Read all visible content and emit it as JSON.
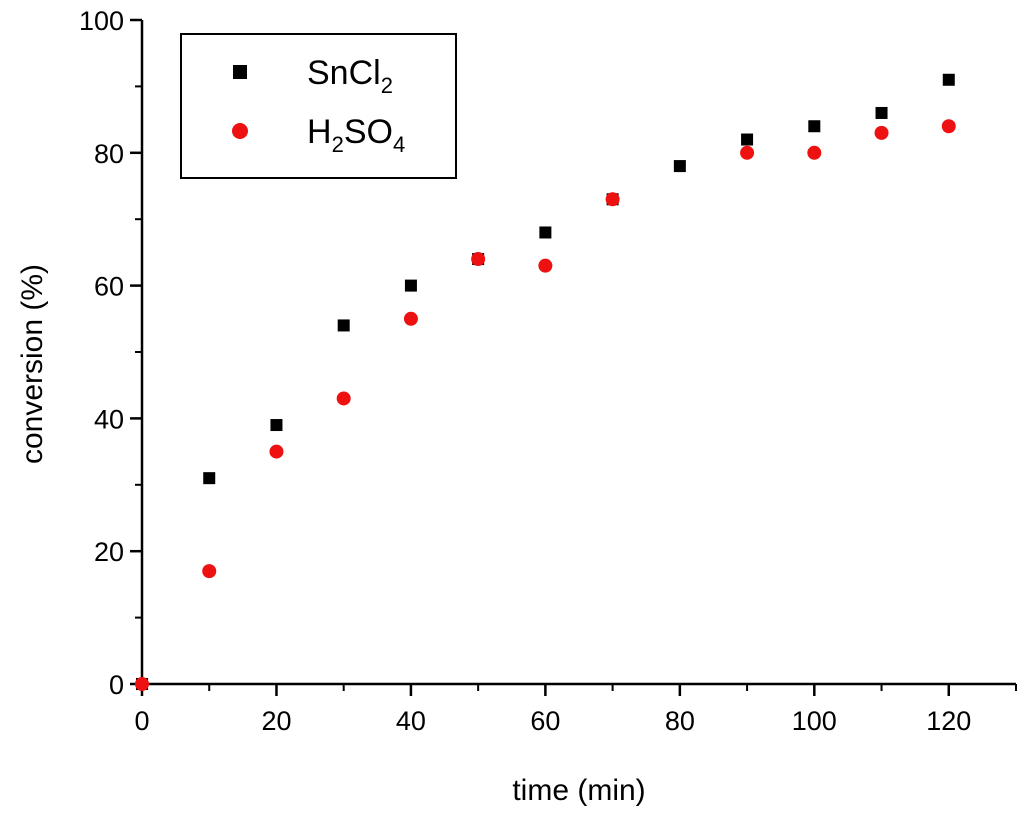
{
  "chart_data": {
    "type": "scatter",
    "title": "",
    "xlabel": "time (min)",
    "ylabel": "conversion (%)",
    "xlim": [
      0,
      130
    ],
    "ylim": [
      0,
      100
    ],
    "xticks": [
      0,
      20,
      40,
      60,
      80,
      100,
      120
    ],
    "yticks": [
      0,
      20,
      40,
      60,
      80,
      100
    ],
    "xtick_labels": [
      "0",
      "20",
      "40",
      "60",
      "80",
      "100",
      "120"
    ],
    "ytick_labels": [
      "0",
      "20",
      "40",
      "60",
      "80",
      "100"
    ],
    "legend_position": "top-left",
    "series": [
      {
        "name": "SnCl2",
        "label_main": "SnCl",
        "label_sub": "2",
        "marker": "square",
        "color": "#000000",
        "x": [
          0,
          10,
          20,
          30,
          40,
          50,
          60,
          70,
          80,
          90,
          100,
          110,
          120
        ],
        "y": [
          0,
          31,
          39,
          54,
          60,
          64,
          68,
          73,
          78,
          82,
          84,
          86,
          91
        ]
      },
      {
        "name": "H2SO4",
        "label_parts": [
          "H",
          "2",
          "SO",
          "4"
        ],
        "marker": "circle",
        "color": "#ee1111",
        "x": [
          0,
          10,
          20,
          30,
          40,
          50,
          60,
          70,
          90,
          100,
          110,
          120
        ],
        "y": [
          0,
          17,
          35,
          43,
          55,
          64,
          63,
          73,
          80,
          80,
          83,
          84
        ]
      }
    ]
  }
}
